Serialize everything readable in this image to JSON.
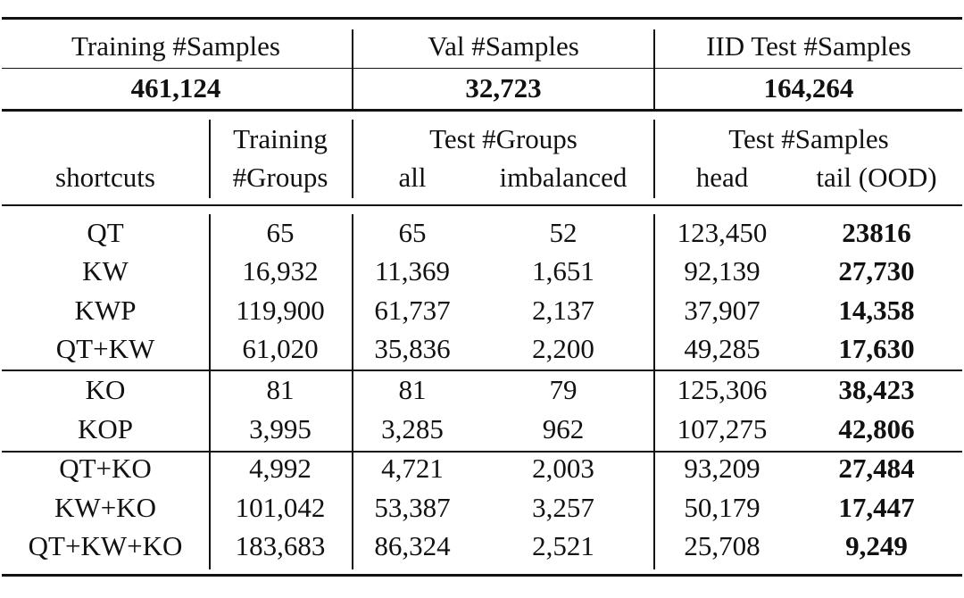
{
  "summary": {
    "headers": [
      "Training #Samples",
      "Val #Samples",
      "IID Test #Samples"
    ],
    "values": [
      "461,124",
      "32,723",
      "164,264"
    ]
  },
  "header": {
    "shortcuts": "shortcuts",
    "training_line1": "Training",
    "training_line2": "#Groups",
    "test_groups": "Test #Groups",
    "test_samples": "Test #Samples",
    "all": "all",
    "imbalanced": "imbalanced",
    "head": "head",
    "tail": "tail (OOD)"
  },
  "rows": [
    [
      "QT",
      "65",
      "65",
      "52",
      "123,450",
      "23816"
    ],
    [
      "KW",
      "16,932",
      "11,369",
      "1,651",
      "92,139",
      "27,730"
    ],
    [
      "KWP",
      "119,900",
      "61,737",
      "2,137",
      "37,907",
      "14,358"
    ],
    [
      "QT+KW",
      "61,020",
      "35,836",
      "2,200",
      "49,285",
      "17,630"
    ],
    [
      "KO",
      "81",
      "81",
      "79",
      "125,306",
      "38,423"
    ],
    [
      "KOP",
      "3,995",
      "3,285",
      "962",
      "107,275",
      "42,806"
    ],
    [
      "QT+KO",
      "4,992",
      "4,721",
      "2,003",
      "93,209",
      "27,484"
    ],
    [
      "KW+KO",
      "101,042",
      "53,387",
      "3,257",
      "50,179",
      "17,447"
    ],
    [
      "QT+KW+KO",
      "183,683",
      "86,324",
      "2,521",
      "25,708",
      "9,249"
    ]
  ]
}
